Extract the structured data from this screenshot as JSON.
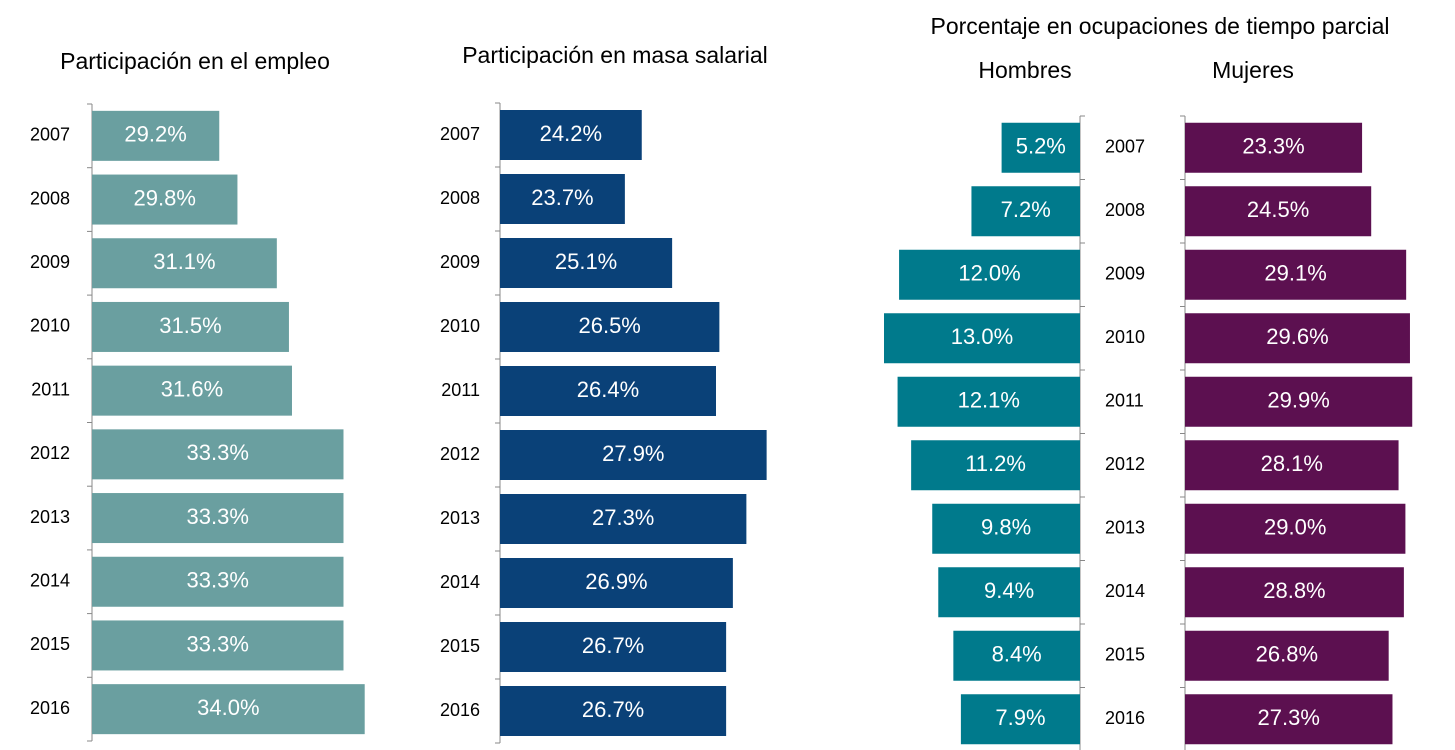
{
  "heading": "Porcentaje en ocupaciones de tiempo parcial",
  "chart_data": [
    {
      "type": "bar",
      "orientation": "horizontal",
      "title": "Participación en el empleo",
      "categories": [
        "2007",
        "2008",
        "2009",
        "2010",
        "2011",
        "2012",
        "2013",
        "2014",
        "2015",
        "2016"
      ],
      "values": [
        29.2,
        29.8,
        31.1,
        31.5,
        31.6,
        33.3,
        33.3,
        33.3,
        33.3,
        34.0
      ],
      "value_labels": [
        "29.2%",
        "29.8%",
        "31.1%",
        "31.5%",
        "31.6%",
        "33.3%",
        "33.3%",
        "33.3%",
        "33.3%",
        "34.0%"
      ],
      "color": "#6a9fa0",
      "xlim": [
        25,
        35
      ]
    },
    {
      "type": "bar",
      "orientation": "horizontal",
      "title": "Participación en masa salarial",
      "categories": [
        "2007",
        "2008",
        "2009",
        "2010",
        "2011",
        "2012",
        "2013",
        "2014",
        "2015",
        "2016"
      ],
      "values": [
        24.2,
        23.7,
        25.1,
        26.5,
        26.4,
        27.9,
        27.3,
        26.9,
        26.7,
        26.7
      ],
      "value_labels": [
        "24.2%",
        "23.7%",
        "25.1%",
        "26.5%",
        "26.4%",
        "27.9%",
        "27.3%",
        "26.9%",
        "26.7%",
        "26.7%"
      ],
      "color": "#0a4178",
      "xlim": [
        20,
        28
      ]
    },
    {
      "type": "bar",
      "orientation": "horizontal",
      "xreverse": true,
      "title": "Hombres",
      "values": [
        5.2,
        7.2,
        12.0,
        13.0,
        12.1,
        11.2,
        9.8,
        9.4,
        8.4,
        7.9
      ],
      "value_labels": [
        "5.2%",
        "7.2%",
        "12.0%",
        "13.0%",
        "12.1%",
        "11.2%",
        "9.8%",
        "9.4%",
        "8.4%",
        "7.9%"
      ],
      "color": "#007a8c",
      "xlim": [
        0,
        13
      ]
    },
    {
      "type": "bar",
      "orientation": "horizontal",
      "title": "Mujeres",
      "categories": [
        "2007",
        "2008",
        "2009",
        "2010",
        "2011",
        "2012",
        "2013",
        "2014",
        "2015",
        "2016"
      ],
      "values": [
        23.3,
        24.5,
        29.1,
        29.6,
        29.9,
        28.1,
        29.0,
        28.8,
        26.8,
        27.3
      ],
      "value_labels": [
        "23.3%",
        "24.5%",
        "29.1%",
        "29.6%",
        "29.9%",
        "28.1%",
        "29.0%",
        "28.8%",
        "26.8%",
        "27.3%"
      ],
      "color": "#5c1050",
      "xlim": [
        0,
        30
      ]
    }
  ]
}
